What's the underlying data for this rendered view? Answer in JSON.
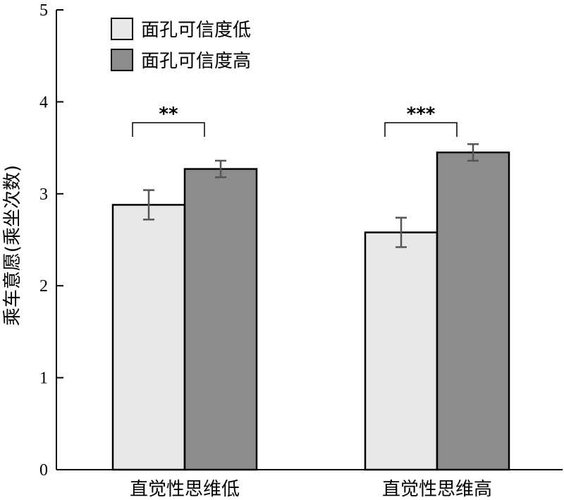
{
  "chart_data": {
    "type": "bar",
    "ylabel": "乘车意愿(乘坐次数)",
    "ylim": [
      0,
      5
    ],
    "yticks": [
      0,
      1,
      2,
      3,
      4,
      5
    ],
    "categories": [
      "直觉性思维低",
      "直觉性思维高"
    ],
    "series": [
      {
        "name": "面孔可信度低",
        "values": [
          2.88,
          2.58
        ],
        "errors": [
          0.16,
          0.16
        ],
        "color": "#e8e8e8"
      },
      {
        "name": "面孔可信度高",
        "values": [
          3.27,
          3.45
        ],
        "errors": [
          0.09,
          0.09
        ],
        "color": "#8c8c8c"
      }
    ],
    "significance": [
      "**",
      "***"
    ],
    "legend_position": "top-left",
    "grid": false
  }
}
